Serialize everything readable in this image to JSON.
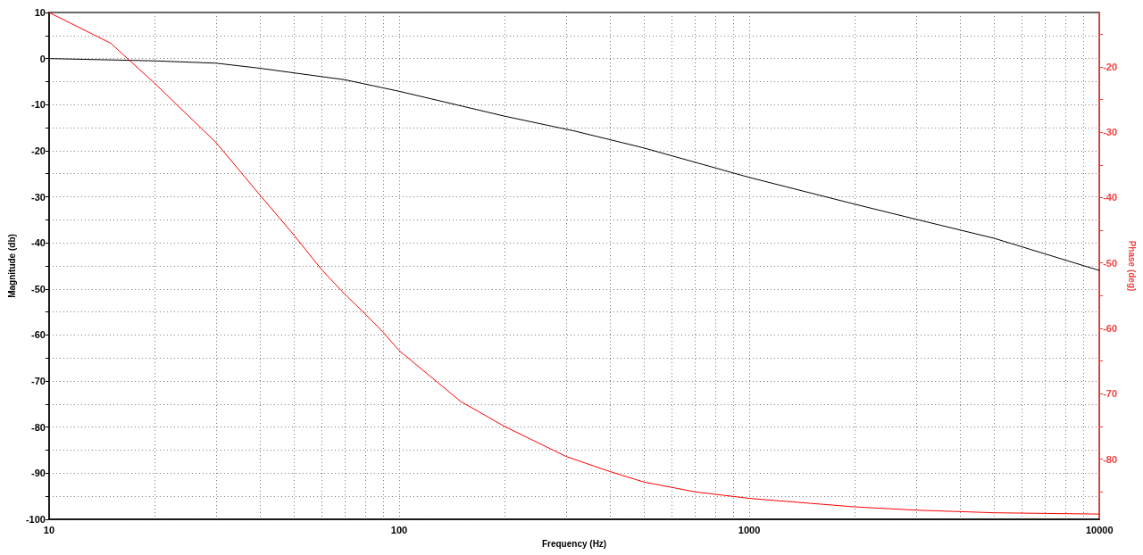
{
  "chart_data": {
    "type": "line",
    "xlabel": "Frequency (Hz)",
    "ylabel": "Magnitude (db)",
    "y2label": "Phase (deg)",
    "log": "x",
    "grid": true,
    "marker": "none",
    "line_style": "solid",
    "xlim": [
      10,
      10000
    ],
    "xticks": [
      10,
      {
        "value": 20,
        "label": null
      },
      {
        "value": 30,
        "label": null
      },
      {
        "value": 40,
        "label": null
      },
      {
        "value": 50,
        "label": null
      },
      {
        "value": 60,
        "label": null
      },
      {
        "value": 70,
        "label": null
      },
      {
        "value": 80,
        "label": null
      },
      {
        "value": 90,
        "label": null
      },
      100,
      {
        "value": 200,
        "label": null
      },
      {
        "value": 300,
        "label": null
      },
      {
        "value": 400,
        "label": null
      },
      {
        "value": 500,
        "label": null
      },
      {
        "value": 600,
        "label": null
      },
      {
        "value": 700,
        "label": null
      },
      {
        "value": 800,
        "label": null
      },
      {
        "value": 900,
        "label": null
      },
      1000,
      {
        "value": 2000,
        "label": null
      },
      {
        "value": 3000,
        "label": null
      },
      {
        "value": 4000,
        "label": null
      },
      {
        "value": 5000,
        "label": null
      },
      {
        "value": 6000,
        "label": null
      },
      {
        "value": 7000,
        "label": null
      },
      {
        "value": 8000,
        "label": null
      },
      {
        "value": 9000,
        "label": null
      },
      10000
    ],
    "ylim": [
      -100,
      10
    ],
    "yticks": [
      -100,
      {
        "value": -95,
        "label": null
      },
      -90,
      {
        "value": -85,
        "label": null
      },
      -80,
      {
        "value": -75,
        "label": null
      },
      -70,
      {
        "value": -65,
        "label": null
      },
      -60,
      {
        "value": -55,
        "label": null
      },
      -50,
      {
        "value": -45,
        "label": null
      },
      -40,
      {
        "value": -35,
        "label": null
      },
      -30,
      {
        "value": -25,
        "label": null
      },
      -20,
      {
        "value": -15,
        "label": null
      },
      -10,
      {
        "value": -5,
        "label": null
      },
      0,
      {
        "value": 5,
        "label": null
      },
      10
    ],
    "y2lim": [
      -89.2,
      -11.7
    ],
    "y2ticks": [
      {
        "value": -85,
        "label": null
      },
      -80,
      {
        "value": -75,
        "label": null
      },
      -70,
      {
        "value": -65,
        "label": null
      },
      -60,
      {
        "value": -55,
        "label": null
      },
      -50,
      {
        "value": -45,
        "label": null
      },
      -40,
      {
        "value": -35,
        "label": null
      },
      -30,
      {
        "value": -25,
        "label": null
      },
      -20,
      {
        "value": -15,
        "label": null
      }
    ],
    "series": [
      {
        "color": "#000000",
        "x": [
          10,
          20,
          30,
          40,
          50,
          70,
          100,
          200,
          316,
          500,
          1000,
          2000,
          3000,
          5000,
          10000
        ],
        "values": [
          0,
          -0.5,
          -1.0,
          -2.1,
          -3.1,
          -4.6,
          -7.1,
          -12.5,
          -15.7,
          -19.4,
          -25.8,
          -31.6,
          -34.9,
          -39.0,
          -46.0
        ]
      },
      {
        "color": "#ff0000",
        "axis": "y2",
        "x": [
          10,
          15,
          20,
          30,
          40,
          50,
          60,
          70,
          80,
          90,
          100,
          150,
          200,
          300,
          400,
          500,
          700,
          1000,
          2000,
          3000,
          5000,
          10000
        ],
        "values": [
          -11.7,
          -16.4,
          -22.5,
          -31.6,
          -39.6,
          -45.7,
          -51.0,
          -54.8,
          -57.8,
          -60.6,
          -63.4,
          -71.2,
          -75.0,
          -79.6,
          -81.9,
          -83.5,
          -85.0,
          -86.0,
          -87.3,
          -87.8,
          -88.2,
          -88.4
        ]
      }
    ]
  }
}
